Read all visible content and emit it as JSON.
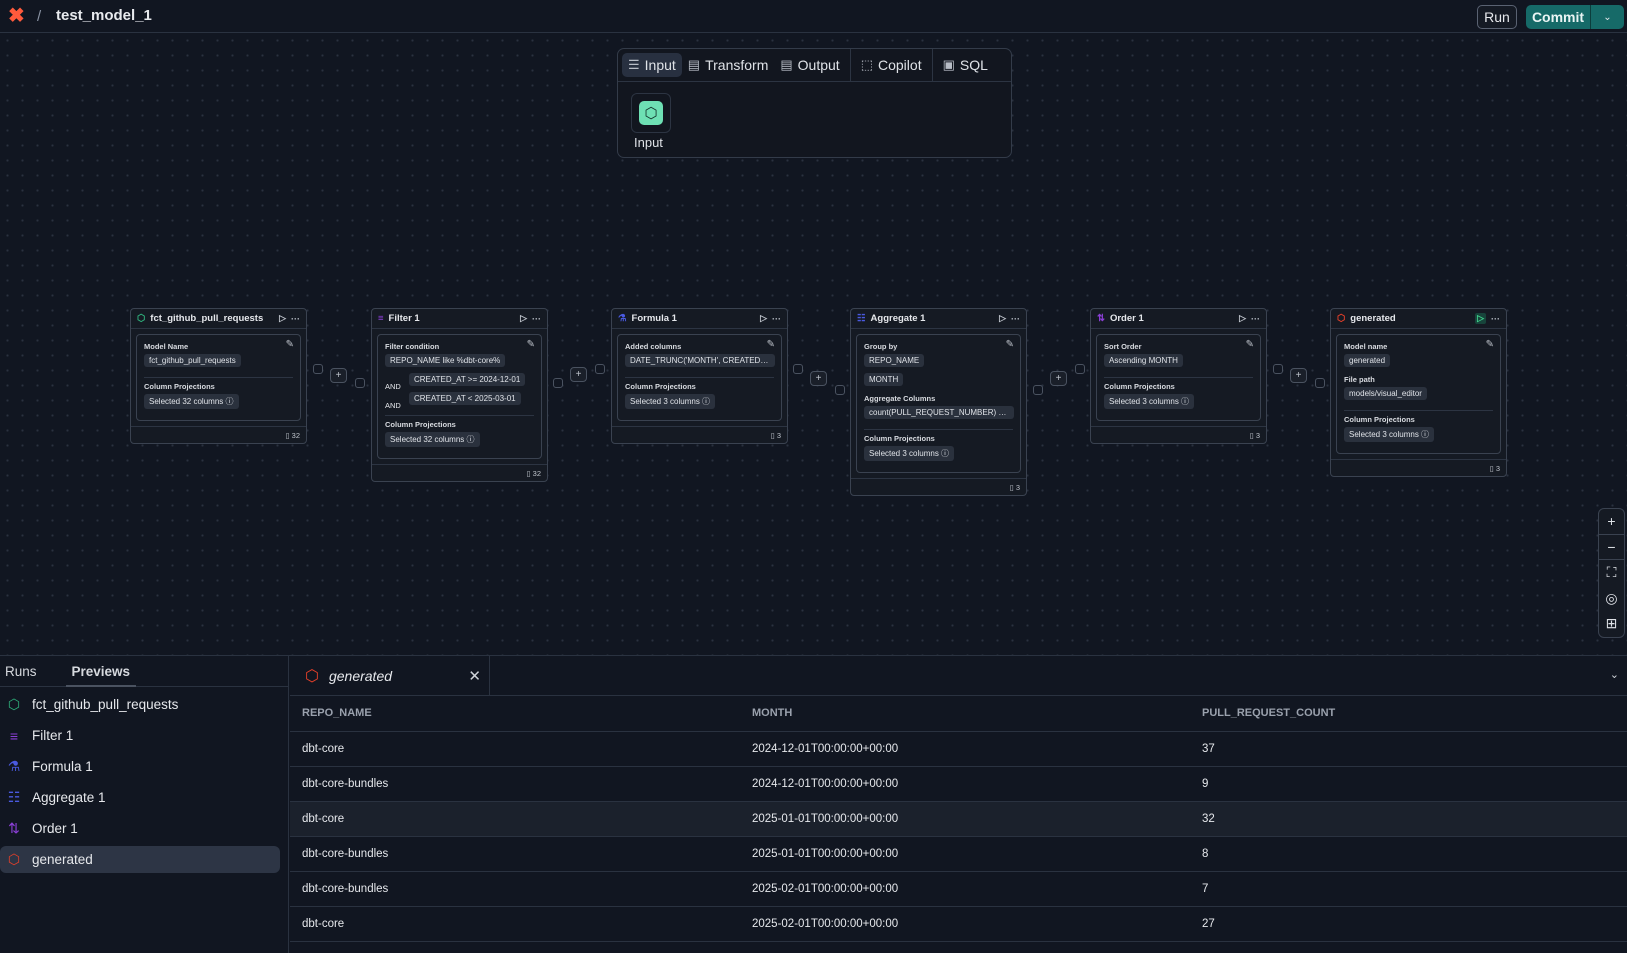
{
  "header": {
    "logo": "dbt-logo",
    "separator": "/",
    "title": "test_model_1",
    "run_label": "Run",
    "commit_label": "Commit"
  },
  "palette": {
    "tabs": [
      {
        "label": "Input",
        "icon": "database-icon",
        "active": true
      },
      {
        "label": "Transform",
        "icon": "file-icon"
      },
      {
        "label": "Output",
        "icon": "file-icon"
      },
      {
        "label": "Copilot",
        "icon": "copilot-icon"
      },
      {
        "label": "SQL",
        "icon": "sql-icon"
      }
    ],
    "item_label": "Input"
  },
  "nodes": [
    {
      "title": "fct_github_pull_requests",
      "icon": "cube-icon",
      "color": "#2fb37d",
      "sections": [
        {
          "label": "Model Name",
          "chips": [
            "fct_github_pull_requests"
          ]
        },
        {
          "label": "Column Projections",
          "chips": [
            "Selected 32 columns ⓘ"
          ]
        }
      ],
      "count": "32"
    },
    {
      "title": "Filter 1",
      "icon": "filter-icon",
      "color": "#8b3fd6",
      "filter_label": "Filter condition",
      "conditions": [
        {
          "op": "",
          "value": "REPO_NAME like %dbt-core%"
        },
        {
          "op": "AND",
          "value": "CREATED_AT >= 2024-12-01"
        },
        {
          "op": "AND",
          "value": "CREATED_AT < 2025-03-01"
        }
      ],
      "projection_label": "Column Projections",
      "projection": "Selected 32 columns ⓘ",
      "count": "32"
    },
    {
      "title": "Formula 1",
      "icon": "flask-icon",
      "color": "#4a5ae0",
      "sections": [
        {
          "label": "Added columns",
          "chips": [
            "DATE_TRUNC('MONTH', CREATED_AT..."
          ]
        },
        {
          "label": "Column Projections",
          "chips": [
            "Selected 3 columns ⓘ"
          ]
        }
      ],
      "count": "3"
    },
    {
      "title": "Aggregate 1",
      "icon": "aggregate-icon",
      "color": "#4a5ae0",
      "sections": [
        {
          "label": "Group by",
          "chips": [
            "REPO_NAME",
            "MONTH"
          ]
        },
        {
          "label": "Aggregate Columns",
          "chips": [
            "count(PULL_REQUEST_NUMBER) as ..."
          ]
        },
        {
          "label": "Column Projections",
          "chips": [
            "Selected 3 columns ⓘ"
          ]
        }
      ],
      "count": "3"
    },
    {
      "title": "Order 1",
      "icon": "sort-icon",
      "color": "#8b3fd6",
      "sections": [
        {
          "label": "Sort Order",
          "chips": [
            "Ascending MONTH"
          ]
        },
        {
          "label": "Column Projections",
          "chips": [
            "Selected 3 columns ⓘ"
          ]
        }
      ],
      "count": "3"
    },
    {
      "title": "generated",
      "icon": "cube-icon",
      "color": "#e5402a",
      "sections": [
        {
          "label": "Model name",
          "chips": [
            "generated"
          ]
        },
        {
          "label": "File path",
          "chips": [
            "models/visual_editor"
          ]
        },
        {
          "label": "Column Projections",
          "chips": [
            "Selected 3 columns ⓘ"
          ]
        }
      ],
      "count": "3"
    }
  ],
  "bottom": {
    "tabs": [
      "Runs",
      "Previews"
    ],
    "active_tab": "Previews",
    "items": [
      {
        "label": "fct_github_pull_requests",
        "icon": "cube-icon",
        "color": "#2fb37d"
      },
      {
        "label": "Filter 1",
        "icon": "filter-icon",
        "color": "#8b3fd6"
      },
      {
        "label": "Formula 1",
        "icon": "flask-icon",
        "color": "#4a5ae0"
      },
      {
        "label": "Aggregate 1",
        "icon": "aggregate-icon",
        "color": "#4a5ae0"
      },
      {
        "label": "Order 1",
        "icon": "sort-icon",
        "color": "#8b3fd6"
      },
      {
        "label": "generated",
        "icon": "cube-icon",
        "color": "#e5402a",
        "selected": true
      }
    ],
    "preview_tab": "generated",
    "table": {
      "columns": [
        "REPO_NAME",
        "MONTH",
        "PULL_REQUEST_COUNT"
      ],
      "rows": [
        [
          "dbt-core",
          "2024-12-01T00:00:00+00:00",
          "37"
        ],
        [
          "dbt-core-bundles",
          "2024-12-01T00:00:00+00:00",
          "9"
        ],
        [
          "dbt-core",
          "2025-01-01T00:00:00+00:00",
          "32"
        ],
        [
          "dbt-core-bundles",
          "2025-01-01T00:00:00+00:00",
          "8"
        ],
        [
          "dbt-core-bundles",
          "2025-02-01T00:00:00+00:00",
          "7"
        ],
        [
          "dbt-core",
          "2025-02-01T00:00:00+00:00",
          "27"
        ]
      ]
    }
  }
}
